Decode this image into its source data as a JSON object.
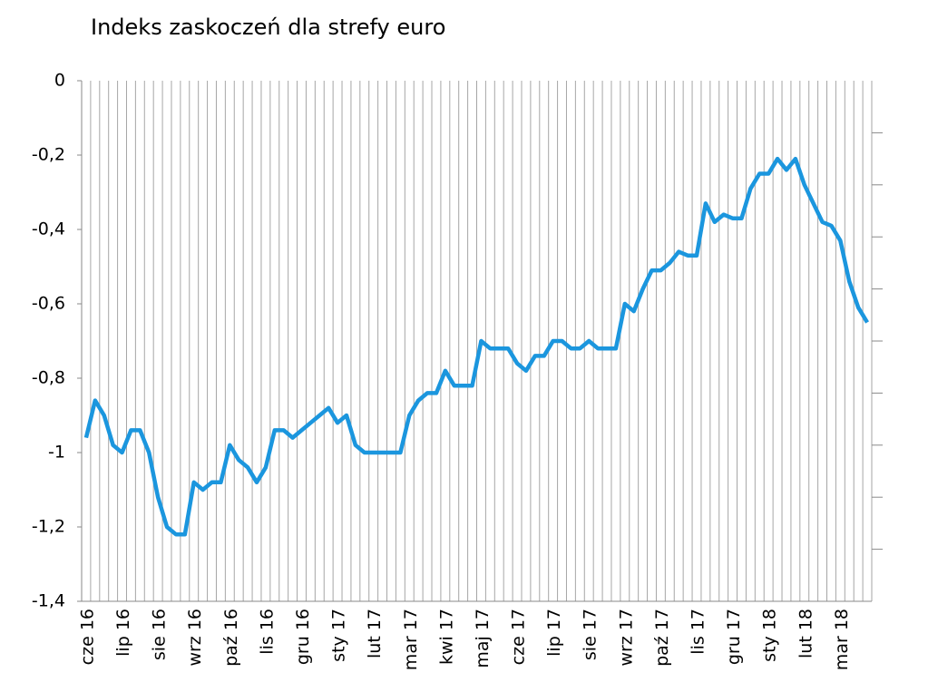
{
  "chart_data": {
    "type": "line",
    "title": "Indeks zaskoczeń dla strefy euro",
    "categories": [
      "cze 16",
      null,
      null,
      null,
      "lip 16",
      null,
      null,
      null,
      "sie 16",
      null,
      null,
      null,
      "wrz 16",
      null,
      null,
      null,
      "paź 16",
      null,
      null,
      null,
      "lis 16",
      null,
      null,
      null,
      "gru 16",
      null,
      null,
      null,
      "sty 17",
      null,
      null,
      null,
      "lut 17",
      null,
      null,
      null,
      "mar 17",
      null,
      null,
      null,
      "kwi 17",
      null,
      null,
      null,
      "maj 17",
      null,
      null,
      null,
      "cze 17",
      null,
      null,
      null,
      "lip 17",
      null,
      null,
      null,
      "sie 17",
      null,
      null,
      null,
      "wrz 17",
      null,
      null,
      null,
      "paź 17",
      null,
      null,
      null,
      "lis 17",
      null,
      null,
      null,
      "gru 17",
      null,
      null,
      null,
      "sty 18",
      null,
      null,
      null,
      "lut 18",
      null,
      null,
      null,
      "mar 18",
      null,
      null,
      null
    ],
    "series": [
      {
        "name": "Indeks zaskoczeń",
        "color": "#1b96de",
        "values": [
          -0.96,
          -0.86,
          -0.9,
          -0.98,
          -1.0,
          -0.94,
          -0.94,
          -1.0,
          -1.12,
          -1.2,
          -1.22,
          -1.22,
          -1.08,
          -1.1,
          -1.08,
          -1.08,
          -0.98,
          -1.02,
          -1.04,
          -1.08,
          -1.04,
          -0.94,
          -0.94,
          -0.96,
          -0.94,
          -0.92,
          -0.9,
          -0.88,
          -0.92,
          -0.9,
          -0.98,
          -1.0,
          -1.0,
          -1.0,
          -1.0,
          -1.0,
          -0.9,
          -0.86,
          -0.84,
          -0.84,
          -0.78,
          -0.82,
          -0.82,
          -0.82,
          -0.7,
          -0.72,
          -0.72,
          -0.72,
          -0.76,
          -0.78,
          -0.74,
          -0.74,
          -0.7,
          -0.7,
          -0.72,
          -0.72,
          -0.7,
          -0.72,
          -0.72,
          -0.72,
          -0.6,
          -0.62,
          -0.56,
          -0.51,
          -0.51,
          -0.49,
          -0.46,
          -0.47,
          -0.47,
          -0.33,
          -0.38,
          -0.36,
          -0.37,
          -0.37,
          -0.29,
          -0.25,
          -0.25,
          -0.21,
          -0.24,
          -0.21,
          -0.28,
          -0.33,
          -0.38,
          -0.39,
          -0.43,
          -0.54,
          -0.61,
          -0.65
        ]
      }
    ],
    "ylim": [
      -1.4,
      0
    ],
    "yticks": [
      {
        "value": -1.4,
        "label": "-1,4"
      },
      {
        "value": -1.2,
        "label": "-1,2"
      },
      -1,
      {
        "value": -0.8,
        "label": "-0,8"
      },
      {
        "value": -0.6,
        "label": "-0,6"
      },
      {
        "value": -0.4,
        "label": "-0,4"
      },
      {
        "value": -0.2,
        "label": "-0,2"
      },
      0
    ],
    "grid": "x"
  }
}
